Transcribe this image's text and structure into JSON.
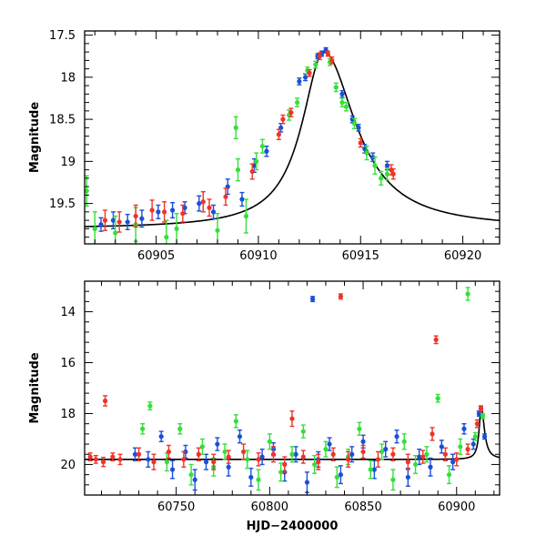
{
  "chart_data": [
    {
      "type": "scatter",
      "xlabel": "",
      "ylabel": "Magnitude",
      "xlim": [
        60901.5,
        60921.8
      ],
      "ylim": [
        19.98,
        17.45
      ],
      "y_inverted": true,
      "x_ticks": [
        60905,
        60910,
        60915,
        60920
      ],
      "x_tick_labels": [
        "60905",
        "60910",
        "60915",
        "60920"
      ],
      "y_ticks": [
        17.5,
        18,
        18.5,
        19,
        19.5
      ],
      "y_tick_labels": [
        "17.5",
        "18",
        "18.5",
        "19",
        "19.5"
      ],
      "model": {
        "peak_x": 60913.2,
        "peak_mag": 17.7,
        "base_mag": 19.8,
        "amplitude_mag": 2.1,
        "rise_width": 1.3,
        "fall_width": 1.9
      },
      "series": [
        {
          "name": "",
          "color": "#1a4fd8",
          "points": [
            [
              60902.3,
              19.75,
              0.08
            ],
            [
              60902.9,
              19.7,
              0.1
            ],
            [
              60903.6,
              19.72,
              0.09
            ],
            [
              60904.3,
              19.68,
              0.1
            ],
            [
              60905.1,
              19.6,
              0.08
            ],
            [
              60905.8,
              19.58,
              0.09
            ],
            [
              60906.4,
              19.55,
              0.07
            ],
            [
              60907.1,
              19.5,
              0.09
            ],
            [
              60907.8,
              19.6,
              0.08
            ],
            [
              60908.5,
              19.3,
              0.09
            ],
            [
              60909.2,
              19.45,
              0.08
            ],
            [
              60909.8,
              19.05,
              0.08
            ],
            [
              60910.4,
              18.88,
              0.06
            ],
            [
              60911.1,
              18.6,
              0.05
            ],
            [
              60912.0,
              18.05,
              0.04
            ],
            [
              60912.3,
              18.0,
              0.04
            ],
            [
              60912.9,
              17.75,
              0.03
            ],
            [
              60913.1,
              17.72,
              0.03
            ],
            [
              60913.3,
              17.68,
              0.03
            ],
            [
              60914.1,
              18.2,
              0.04
            ],
            [
              60914.6,
              18.5,
              0.04
            ],
            [
              60914.9,
              18.6,
              0.04
            ],
            [
              60915.2,
              18.85,
              0.05
            ],
            [
              60915.6,
              18.95,
              0.05
            ],
            [
              60916.3,
              19.05,
              0.05
            ]
          ]
        },
        {
          "name": "",
          "color": "#33e03a",
          "points": [
            [
              60901.6,
              19.35,
              0.18
            ],
            [
              60902.0,
              19.8,
              0.2
            ],
            [
              60903.0,
              19.85,
              0.2
            ],
            [
              60904.0,
              19.75,
              0.2
            ],
            [
              60905.5,
              19.9,
              0.2
            ],
            [
              60906.0,
              19.8,
              0.18
            ],
            [
              60908.0,
              19.82,
              0.2
            ],
            [
              60908.9,
              18.6,
              0.13
            ],
            [
              60909.0,
              19.1,
              0.13
            ],
            [
              60909.4,
              19.65,
              0.2
            ],
            [
              60909.9,
              19.0,
              0.1
            ],
            [
              60910.2,
              18.82,
              0.08
            ],
            [
              60911.5,
              18.45,
              0.06
            ],
            [
              60911.9,
              18.3,
              0.05
            ],
            [
              60912.4,
              17.92,
              0.04
            ],
            [
              60912.8,
              17.85,
              0.04
            ],
            [
              60913.5,
              17.82,
              0.04
            ],
            [
              60913.8,
              18.12,
              0.05
            ],
            [
              60914.1,
              18.3,
              0.05
            ],
            [
              60914.3,
              18.35,
              0.05
            ],
            [
              60914.7,
              18.55,
              0.06
            ],
            [
              60915.3,
              18.9,
              0.08
            ],
            [
              60915.7,
              19.05,
              0.1
            ],
            [
              60916.0,
              19.2,
              0.08
            ],
            [
              60916.3,
              19.15,
              0.07
            ]
          ]
        },
        {
          "name": "",
          "color": "#f0332a",
          "points": [
            [
              60902.5,
              19.7,
              0.12
            ],
            [
              60903.2,
              19.72,
              0.12
            ],
            [
              60904.0,
              19.65,
              0.13
            ],
            [
              60904.8,
              19.58,
              0.12
            ],
            [
              60905.4,
              19.6,
              0.12
            ],
            [
              60906.3,
              19.62,
              0.1
            ],
            [
              60907.3,
              19.48,
              0.12
            ],
            [
              60907.6,
              19.55,
              0.1
            ],
            [
              60908.4,
              19.42,
              0.1
            ],
            [
              60909.7,
              19.12,
              0.09
            ],
            [
              60911.0,
              18.68,
              0.06
            ],
            [
              60911.2,
              18.5,
              0.05
            ],
            [
              60911.6,
              18.42,
              0.05
            ],
            [
              60912.5,
              17.95,
              0.04
            ],
            [
              60913.0,
              17.75,
              0.04
            ],
            [
              60913.4,
              17.72,
              0.03
            ],
            [
              60913.6,
              17.8,
              0.04
            ],
            [
              60915.0,
              18.78,
              0.05
            ],
            [
              60916.5,
              19.1,
              0.06
            ],
            [
              60916.6,
              19.15,
              0.06
            ]
          ]
        }
      ]
    },
    {
      "type": "scatter",
      "xlabel": "HJD−2400000",
      "ylabel": "Magnitude",
      "xlim": [
        60701,
        60923
      ],
      "ylim": [
        21.2,
        12.8
      ],
      "y_inverted": true,
      "x_ticks": [
        60750,
        60800,
        60850,
        60900
      ],
      "x_tick_labels": [
        "60750",
        "60800",
        "60850",
        "60900"
      ],
      "y_ticks": [
        14,
        16,
        18,
        20
      ],
      "y_tick_labels": [
        "14",
        "16",
        "18",
        "20"
      ],
      "model": {
        "peak_x": 60913.2,
        "peak_mag": 17.7,
        "base_mag": 19.8,
        "amplitude_mag": 2.1,
        "rise_width": 1.3,
        "fall_width": 1.9
      },
      "series": [
        {
          "name": "",
          "color": "#1a4fd8",
          "points": [
            [
              60728,
              19.6,
              0.25
            ],
            [
              60735,
              19.8,
              0.3
            ],
            [
              60742,
              18.9,
              0.2
            ],
            [
              60748,
              20.2,
              0.35
            ],
            [
              60755,
              19.5,
              0.25
            ],
            [
              60760,
              20.6,
              0.4
            ],
            [
              60766,
              19.9,
              0.3
            ],
            [
              60772,
              19.2,
              0.25
            ],
            [
              60778,
              20.1,
              0.35
            ],
            [
              60784,
              18.9,
              0.25
            ],
            [
              60790,
              20.5,
              0.35
            ],
            [
              60796,
              19.7,
              0.3
            ],
            [
              60802,
              19.4,
              0.25
            ],
            [
              60808,
              20.3,
              0.35
            ],
            [
              60814,
              19.6,
              0.3
            ],
            [
              60820,
              20.7,
              0.4
            ],
            [
              60823,
              13.5,
              0.1
            ],
            [
              60826,
              19.8,
              0.3
            ],
            [
              60832,
              19.2,
              0.25
            ],
            [
              60838,
              20.4,
              0.35
            ],
            [
              60844,
              19.6,
              0.3
            ],
            [
              60850,
              19.1,
              0.25
            ],
            [
              60856,
              20.2,
              0.35
            ],
            [
              60862,
              19.4,
              0.3
            ],
            [
              60868,
              18.9,
              0.25
            ],
            [
              60874,
              20.5,
              0.35
            ],
            [
              60880,
              19.7,
              0.3
            ],
            [
              60886,
              20.1,
              0.35
            ],
            [
              60892,
              19.3,
              0.25
            ],
            [
              60898,
              19.9,
              0.3
            ],
            [
              60904,
              18.6,
              0.2
            ],
            [
              60909,
              19.2,
              0.2
            ],
            [
              60912,
              18.0,
              0.1
            ],
            [
              60913,
              17.8,
              0.1
            ],
            [
              60915,
              18.9,
              0.1
            ]
          ]
        },
        {
          "name": "",
          "color": "#33e03a",
          "points": [
            [
              60732,
              18.6,
              0.2
            ],
            [
              60736,
              17.7,
              0.15
            ],
            [
              60745,
              19.9,
              0.35
            ],
            [
              60752,
              18.6,
              0.2
            ],
            [
              60758,
              20.4,
              0.4
            ],
            [
              60764,
              19.3,
              0.3
            ],
            [
              60770,
              20.1,
              0.35
            ],
            [
              60776,
              19.5,
              0.3
            ],
            [
              60782,
              18.3,
              0.25
            ],
            [
              60788,
              19.8,
              0.35
            ],
            [
              60794,
              20.6,
              0.4
            ],
            [
              60800,
              19.1,
              0.3
            ],
            [
              60806,
              20.3,
              0.35
            ],
            [
              60812,
              19.6,
              0.3
            ],
            [
              60818,
              18.7,
              0.25
            ],
            [
              60824,
              20.0,
              0.35
            ],
            [
              60830,
              19.4,
              0.3
            ],
            [
              60836,
              20.5,
              0.4
            ],
            [
              60842,
              19.7,
              0.3
            ],
            [
              60848,
              18.6,
              0.25
            ],
            [
              60854,
              20.2,
              0.35
            ],
            [
              60860,
              19.5,
              0.3
            ],
            [
              60866,
              20.6,
              0.4
            ],
            [
              60872,
              19.1,
              0.3
            ],
            [
              60878,
              20.0,
              0.35
            ],
            [
              60884,
              19.6,
              0.3
            ],
            [
              60890,
              17.4,
              0.15
            ],
            [
              60896,
              20.4,
              0.35
            ],
            [
              60902,
              19.3,
              0.3
            ],
            [
              60906,
              13.3,
              0.25
            ],
            [
              60910,
              18.9,
              0.15
            ],
            [
              60914,
              18.1,
              0.1
            ]
          ]
        },
        {
          "name": "",
          "color": "#f0332a",
          "points": [
            [
              60704,
              19.7,
              0.15
            ],
            [
              60707,
              19.8,
              0.15
            ],
            [
              60711,
              19.9,
              0.18
            ],
            [
              60712,
              17.5,
              0.2
            ],
            [
              60716,
              19.7,
              0.15
            ],
            [
              60720,
              19.8,
              0.2
            ],
            [
              60730,
              19.6,
              0.25
            ],
            [
              60738,
              19.9,
              0.3
            ],
            [
              60746,
              19.5,
              0.25
            ],
            [
              60754,
              19.8,
              0.3
            ],
            [
              60762,
              19.6,
              0.25
            ],
            [
              60770,
              19.9,
              0.3
            ],
            [
              60778,
              19.7,
              0.25
            ],
            [
              60786,
              19.5,
              0.3
            ],
            [
              60794,
              19.8,
              0.25
            ],
            [
              60802,
              19.6,
              0.3
            ],
            [
              60808,
              20.0,
              0.3
            ],
            [
              60812,
              18.2,
              0.3
            ],
            [
              60818,
              19.7,
              0.25
            ],
            [
              60826,
              19.9,
              0.3
            ],
            [
              60834,
              19.6,
              0.25
            ],
            [
              60838,
              13.4,
              0.1
            ],
            [
              60842,
              19.8,
              0.3
            ],
            [
              60850,
              19.5,
              0.25
            ],
            [
              60858,
              19.8,
              0.3
            ],
            [
              60866,
              19.6,
              0.25
            ],
            [
              60874,
              19.9,
              0.3
            ],
            [
              60882,
              19.7,
              0.25
            ],
            [
              60887,
              18.8,
              0.25
            ],
            [
              60889,
              15.1,
              0.15
            ],
            [
              60894,
              19.6,
              0.25
            ],
            [
              60900,
              19.8,
              0.25
            ],
            [
              60906,
              19.4,
              0.2
            ],
            [
              60911,
              18.4,
              0.15
            ],
            [
              60913,
              17.8,
              0.1
            ]
          ]
        }
      ]
    }
  ]
}
